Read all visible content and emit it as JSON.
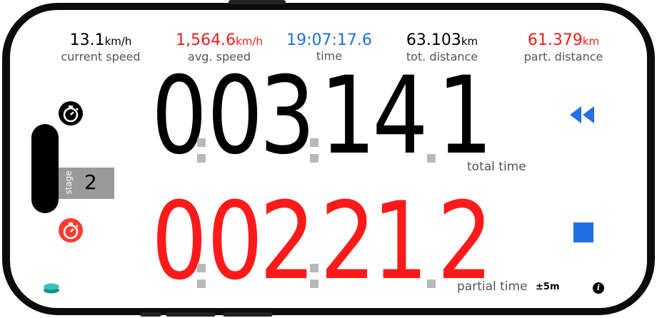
{
  "stats": [
    {
      "value": "13.1",
      "unit": "km/h",
      "label": "current speed"
    },
    {
      "value": "1,564.6",
      "unit": "km/h",
      "label": "avg. speed"
    },
    {
      "value": "19:07:17.6",
      "unit": "",
      "label": "time"
    },
    {
      "value": "63.103",
      "unit": "km",
      "label": "tot. distance"
    },
    {
      "value": "61.379",
      "unit": "km",
      "label": "part. distance"
    }
  ],
  "total_time": {
    "h": "0",
    "m": "03",
    "s": "14",
    "t": "1",
    "caption": "total time"
  },
  "partial_time": {
    "h": "0",
    "m": "02",
    "s": "21",
    "t": "2",
    "caption": "partial time"
  },
  "stage": {
    "label": "stage",
    "value": "2"
  },
  "accuracy": "±5m",
  "colors": {
    "total": "#000000",
    "partial": "#ff1a1a",
    "accent_blue": "#1f6fe5",
    "separator": "#b8b8b8",
    "stage_bg": "#9a9a9a"
  }
}
